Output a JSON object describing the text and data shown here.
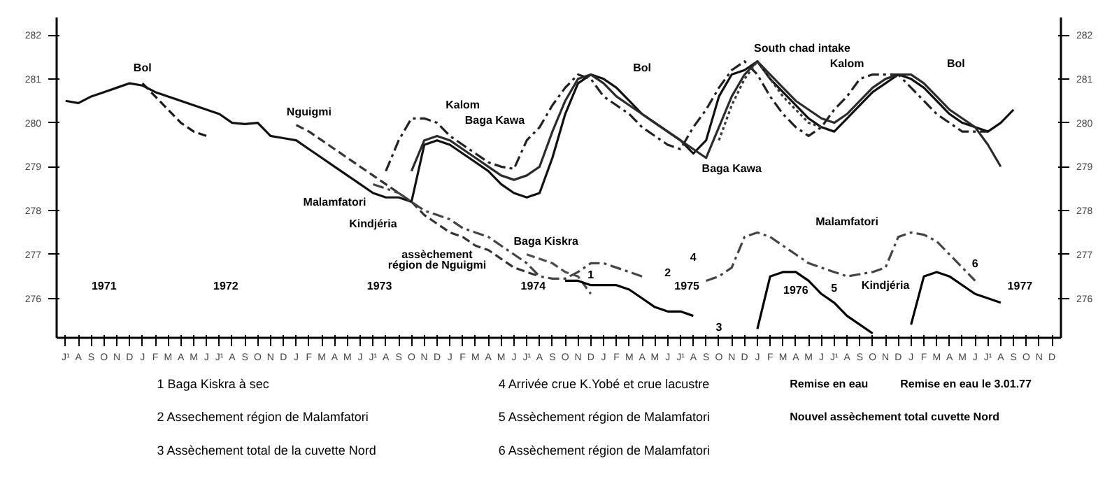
{
  "chart_data": {
    "type": "line",
    "categories": [
      "J¹",
      "A",
      "S",
      "O",
      "N",
      "D",
      "J",
      "F",
      "M",
      "A",
      "M",
      "J",
      "J¹",
      "A",
      "S",
      "O",
      "N",
      "D",
      "J",
      "F",
      "M",
      "A",
      "M",
      "J",
      "J¹",
      "A",
      "S",
      "O",
      "N",
      "D",
      "J",
      "F",
      "M",
      "A",
      "M",
      "J",
      "J¹",
      "A",
      "S",
      "O",
      "N",
      "D",
      "J",
      "F",
      "M",
      "A",
      "M",
      "J",
      "J¹",
      "A",
      "S",
      "O",
      "N",
      "D",
      "J",
      "F",
      "M",
      "A",
      "M",
      "J",
      "J¹",
      "A",
      "S",
      "O",
      "N",
      "D",
      "J",
      "F",
      "M",
      "A",
      "M",
      "J",
      "J¹",
      "A",
      "S",
      "O",
      "N",
      "D"
    ],
    "ylim": [
      275.1,
      282.4
    ],
    "yticks": [
      276,
      277,
      278,
      279,
      280,
      281,
      282
    ],
    "y2lim": [
      275.1,
      282.4
    ],
    "y2ticks": [
      276,
      277,
      278,
      279,
      280,
      281,
      282
    ],
    "grid": false,
    "series": [
      {
        "color": "#111111",
        "line_style": "solid",
        "values": [
          280.5,
          280.45,
          280.6,
          280.7,
          280.8,
          280.9,
          280.85,
          280.7,
          280.6,
          280.5,
          280.4,
          280.3,
          280.2,
          280.0,
          279.97,
          280.0,
          279.7,
          279.65,
          279.6,
          279.4,
          279.2,
          279.0,
          278.8,
          278.6,
          278.4,
          278.3,
          278.3,
          278.2,
          279.5,
          279.6,
          279.5,
          279.3,
          279.1,
          278.9,
          278.6,
          278.4,
          278.3,
          278.4,
          279.2,
          280.2,
          280.9,
          281.1,
          281.0,
          280.8,
          280.5,
          280.2,
          280.0,
          279.8,
          279.6,
          279.3,
          279.6,
          280.6,
          281.1,
          281.2,
          281.4,
          281.0,
          280.7,
          280.4,
          280.1,
          279.9,
          279.8,
          280.1,
          280.4,
          280.7,
          280.9,
          281.1,
          281.0,
          280.8,
          280.5,
          280.2,
          280.0,
          279.9,
          279.8,
          280.0,
          280.3,
          null,
          null,
          null
        ]
      },
      {
        "color": "#1a1a1a",
        "line_style": "dashed",
        "values": [
          null,
          null,
          null,
          null,
          null,
          null,
          280.9,
          280.6,
          280.3,
          280.0,
          279.8,
          279.7,
          null,
          null,
          null,
          null,
          null,
          null,
          null,
          null,
          null,
          null,
          null,
          null,
          null,
          null,
          null,
          null,
          null,
          null,
          null,
          null,
          null,
          null,
          null,
          null,
          null,
          null,
          null,
          null,
          null,
          null,
          null,
          null,
          null,
          null,
          null,
          null,
          null,
          null,
          null,
          null,
          null,
          null,
          null,
          null,
          null,
          null,
          null,
          null,
          null,
          null,
          null,
          null,
          null,
          null,
          null,
          null,
          null,
          null,
          null,
          null,
          null,
          null,
          null,
          null,
          null,
          null
        ]
      },
      {
        "color": "#2b2b2b",
        "line_style": "solid",
        "values": [
          null,
          null,
          null,
          null,
          null,
          null,
          null,
          null,
          null,
          null,
          null,
          null,
          null,
          null,
          null,
          null,
          null,
          null,
          null,
          null,
          null,
          null,
          null,
          null,
          null,
          null,
          null,
          278.9,
          279.6,
          279.7,
          279.6,
          279.4,
          279.2,
          279.0,
          278.8,
          278.7,
          278.8,
          279.0,
          279.8,
          280.5,
          281.0,
          281.1,
          280.9,
          280.6,
          280.4,
          280.2,
          280.0,
          279.8,
          279.6,
          279.4,
          279.2,
          279.9,
          280.6,
          281.1,
          281.4,
          281.1,
          280.8,
          280.5,
          280.3,
          280.1,
          280.0,
          280.2,
          280.5,
          280.8,
          281.0,
          281.1,
          281.1,
          280.9,
          280.6,
          280.3,
          280.1,
          279.9,
          279.5,
          279.0,
          null,
          null,
          null,
          null
        ]
      },
      {
        "color": "#222222",
        "line_style": "dashdot",
        "values": [
          null,
          null,
          null,
          null,
          null,
          null,
          null,
          null,
          null,
          null,
          null,
          null,
          null,
          null,
          null,
          null,
          null,
          null,
          null,
          null,
          null,
          null,
          null,
          null,
          null,
          278.9,
          279.6,
          280.1,
          280.1,
          280.0,
          279.7,
          279.5,
          279.3,
          279.1,
          279.0,
          278.95,
          279.6,
          279.9,
          280.4,
          280.8,
          281.1,
          281.0,
          280.6,
          280.4,
          280.2,
          279.9,
          279.7,
          279.5,
          279.4,
          279.9,
          280.3,
          280.8,
          281.2,
          281.4,
          281.1,
          280.6,
          280.2,
          279.9,
          279.7,
          279.9,
          280.3,
          280.6,
          281.0,
          281.1,
          281.1,
          281.1,
          280.8,
          280.5,
          280.2,
          280.0,
          279.8,
          279.8,
          279.8,
          null,
          null,
          null,
          null,
          null
        ]
      },
      {
        "color": "#333333",
        "line_style": "dashed",
        "values": [
          null,
          null,
          null,
          null,
          null,
          null,
          null,
          null,
          null,
          null,
          null,
          null,
          null,
          null,
          null,
          null,
          null,
          null,
          279.95,
          279.8,
          279.6,
          279.4,
          279.2,
          279.0,
          278.8,
          278.6,
          278.4,
          278.2,
          277.9,
          277.7,
          277.5,
          277.4,
          277.2,
          277.1,
          276.9,
          276.7,
          276.6,
          276.5,
          null,
          null,
          null,
          null,
          null,
          null,
          null,
          null,
          null,
          null,
          null,
          null,
          null,
          null,
          null,
          null,
          null,
          null,
          null,
          null,
          null,
          null,
          null,
          null,
          null,
          null,
          null,
          null,
          null,
          null,
          null,
          null,
          null,
          null,
          null,
          null,
          null,
          null,
          null,
          null
        ]
      },
      {
        "color": "#3a3a3a",
        "line_style": "dotted",
        "values": [
          null,
          null,
          null,
          null,
          null,
          null,
          null,
          null,
          null,
          null,
          null,
          null,
          null,
          null,
          null,
          null,
          null,
          null,
          null,
          null,
          null,
          null,
          null,
          null,
          null,
          null,
          null,
          null,
          null,
          null,
          null,
          null,
          null,
          null,
          null,
          null,
          null,
          null,
          null,
          null,
          null,
          null,
          null,
          null,
          null,
          null,
          null,
          null,
          null,
          null,
          null,
          279.6,
          280.4,
          281.0,
          281.4,
          281.0,
          280.6,
          280.3,
          280.0,
          279.9,
          null,
          null,
          null,
          null,
          null,
          null,
          null,
          null,
          null,
          null,
          null,
          null,
          null,
          null,
          null,
          null,
          null,
          null
        ]
      },
      {
        "color": "#444444",
        "line_style": "dashdot",
        "values": [
          null,
          null,
          null,
          null,
          null,
          null,
          null,
          null,
          null,
          null,
          null,
          null,
          null,
          null,
          null,
          null,
          null,
          null,
          null,
          null,
          null,
          null,
          null,
          null,
          278.6,
          278.5,
          278.4,
          278.2,
          278.0,
          277.9,
          277.8,
          277.6,
          277.5,
          277.4,
          277.2,
          277.0,
          276.8,
          276.5,
          276.45,
          276.45,
          276.6,
          276.8,
          276.8,
          276.7,
          276.6,
          276.5,
          null,
          null,
          null,
          null,
          276.4,
          276.5,
          276.7,
          277.4,
          277.5,
          277.4,
          277.2,
          277.0,
          276.8,
          276.7,
          276.6,
          276.5,
          276.55,
          276.6,
          276.7,
          277.4,
          277.5,
          277.45,
          277.3,
          277.0,
          276.7,
          276.4,
          null,
          null,
          null,
          null,
          null,
          null
        ]
      },
      {
        "color": "#4d4d4d",
        "line_style": "dashed",
        "values": [
          null,
          null,
          null,
          null,
          null,
          null,
          null,
          null,
          null,
          null,
          null,
          null,
          null,
          null,
          null,
          null,
          null,
          null,
          null,
          null,
          null,
          null,
          null,
          null,
          null,
          null,
          null,
          null,
          null,
          null,
          null,
          null,
          null,
          null,
          null,
          null,
          277.0,
          276.9,
          276.8,
          276.6,
          276.5,
          276.1,
          null,
          null,
          null,
          null,
          null,
          null,
          null,
          null,
          null,
          null,
          null,
          null,
          null,
          null,
          null,
          null,
          null,
          null,
          null,
          null,
          null,
          null,
          null,
          null,
          null,
          null,
          null,
          null,
          null,
          null,
          null,
          null,
          null,
          null,
          null,
          null
        ]
      },
      {
        "color": "#000000",
        "line_style": "solid",
        "values": [
          null,
          null,
          null,
          null,
          null,
          null,
          null,
          null,
          null,
          null,
          null,
          null,
          null,
          null,
          null,
          null,
          null,
          null,
          null,
          null,
          null,
          null,
          null,
          null,
          null,
          null,
          null,
          null,
          null,
          null,
          null,
          null,
          null,
          null,
          null,
          null,
          null,
          null,
          null,
          276.4,
          276.4,
          276.3,
          276.3,
          276.3,
          276.2,
          276.0,
          275.8,
          275.7,
          275.7,
          275.6,
          null,
          null,
          null,
          null,
          275.3,
          276.5,
          276.6,
          276.6,
          276.4,
          276.1,
          275.9,
          275.6,
          275.4,
          275.2,
          null,
          null,
          275.4,
          276.5,
          276.6,
          276.5,
          276.3,
          276.1,
          276.0,
          275.9,
          null,
          null,
          null,
          null
        ]
      }
    ],
    "annotations": [
      "Bol",
      "Nguigmi",
      "Kalom",
      "Baga Kawa",
      "Malamfatori",
      "Kindjéria",
      "assèchement",
      "région de Nguigmi",
      "Baga Kiskra",
      "Bol",
      "Baga Kawa",
      "South chad intake",
      "Kalom",
      "Bol",
      "Malamfatori",
      "Kindjéria",
      "1",
      "2",
      "3",
      "4",
      "5",
      "6",
      "1971",
      "1972",
      "1973",
      "1974",
      "1975",
      "1976",
      "1977",
      "Remise en eau",
      "Nouvel assèchement total cuvette Nord",
      "Remise en eau le 3.01.77",
      "1  Baga Kiskra à sec",
      "2  Assechement région de Malamfatori",
      "3  Assèchement total de la cuvette Nord",
      "4  Arrivée crue K.Yobé et crue lacustre",
      "5  Assèchement région de Malamfatori",
      "6  Assèchement région de Malamfatori"
    ]
  }
}
